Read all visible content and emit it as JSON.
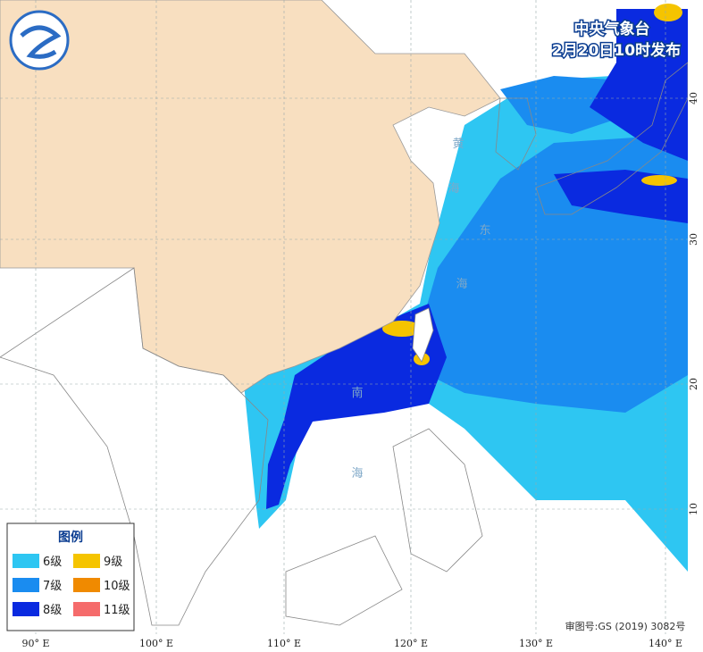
{
  "header": {
    "agency": "中央气象台",
    "issued": "2月20日10时发布"
  },
  "legend": {
    "title": "图例",
    "items": [
      {
        "label": "6级",
        "color": "#2ec6f2"
      },
      {
        "label": "7级",
        "color": "#1a8cf0"
      },
      {
        "label": "8级",
        "color": "#0a2ae0"
      },
      {
        "label": "9级",
        "color": "#f5c400"
      },
      {
        "label": "10级",
        "color": "#f08a00"
      },
      {
        "label": "11级",
        "color": "#f56b6b"
      }
    ]
  },
  "longitude_labels": [
    "90° E",
    "100° E",
    "110° E",
    "120° E",
    "130° E",
    "140° E"
  ],
  "latitude_labels": [
    "40",
    "30",
    "20",
    "10"
  ],
  "sea_labels": [
    "黄",
    "海",
    "东",
    "海",
    "南",
    "海"
  ],
  "approval": "审图号:GS (2019) 3082号"
}
